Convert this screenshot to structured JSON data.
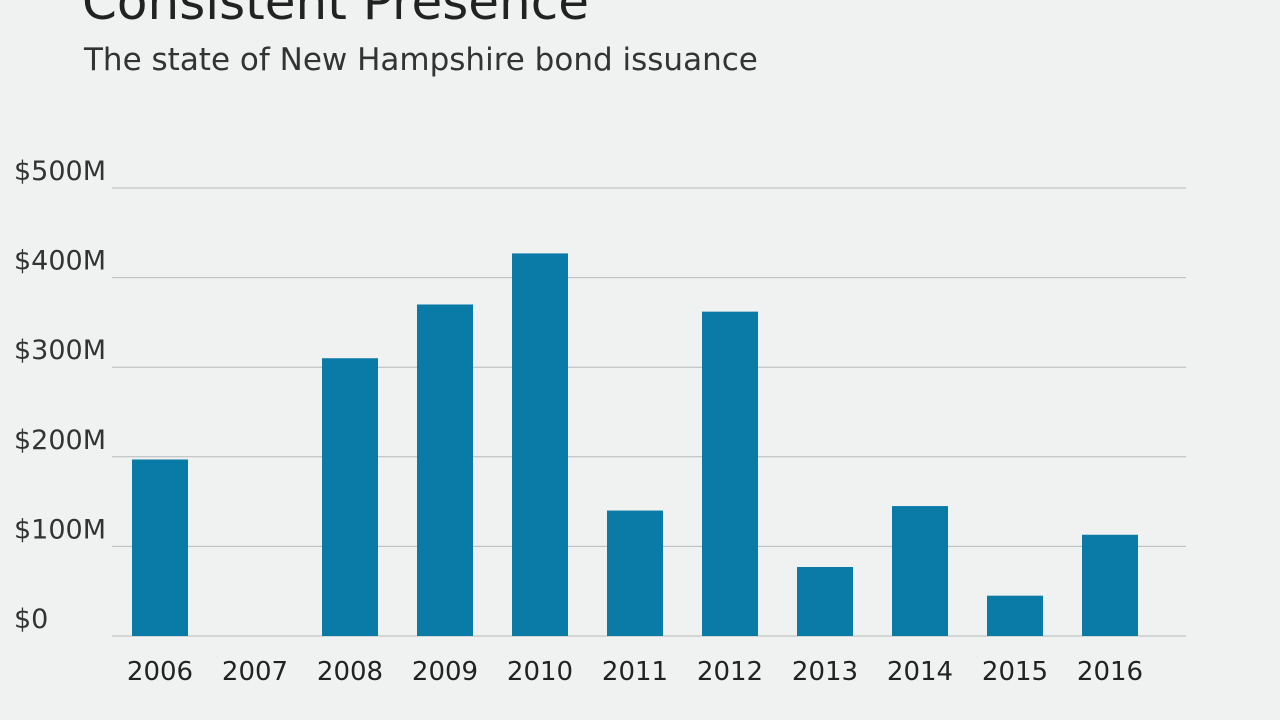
{
  "chart_data": {
    "type": "bar",
    "title": "Consistent Presence",
    "subtitle": "The state of New Hampshire bond issuance",
    "categories": [
      "2006",
      "2007",
      "2008",
      "2009",
      "2010",
      "2011",
      "2012",
      "2013",
      "2014",
      "2015",
      "2016"
    ],
    "values": [
      197,
      0,
      310,
      370,
      427,
      140,
      362,
      77,
      145,
      45,
      113
    ],
    "ylim": [
      0,
      500
    ],
    "yticks": [
      0,
      100,
      200,
      300,
      400,
      500
    ],
    "ytick_labels": [
      "$0",
      "$100M",
      "$200M",
      "$300M",
      "$400M",
      "$500M"
    ],
    "xlabel": "",
    "ylabel": "",
    "grid": true,
    "colors": {
      "bar": "#0a7aa6",
      "grid": "#b7bbbb",
      "background": "#f0f2f2"
    }
  }
}
